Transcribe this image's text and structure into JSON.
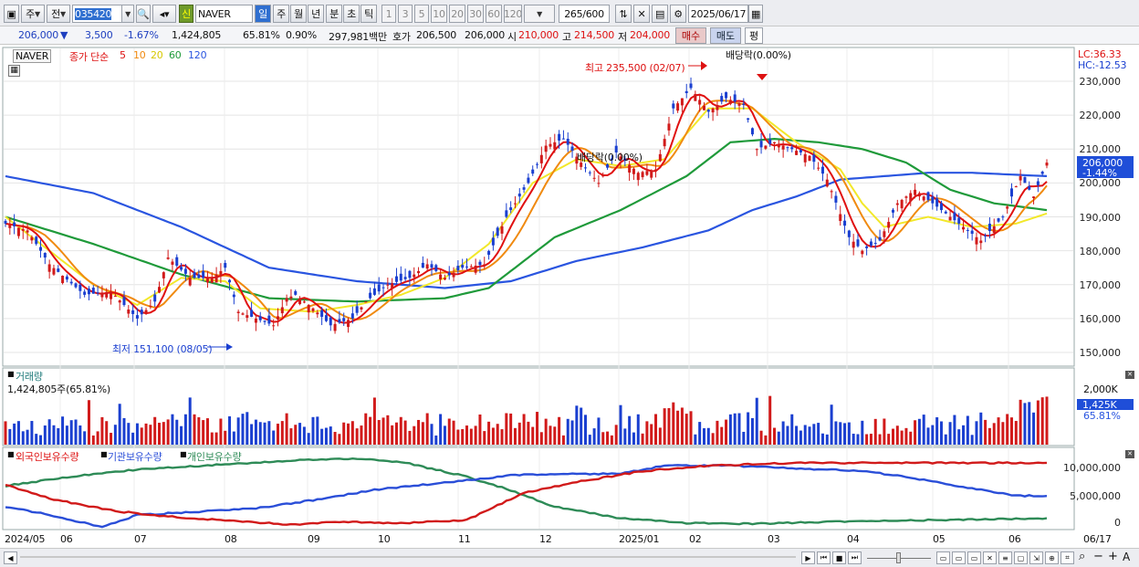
{
  "toolbar": {
    "mode_week": "주",
    "mode_prev": "전",
    "code": "035420",
    "badge_new": "신",
    "stock_name": "NAVER",
    "periods": [
      "일",
      "주",
      "월",
      "년",
      "분",
      "초",
      "틱"
    ],
    "intervals": [
      "1",
      "3",
      "5",
      "10",
      "20",
      "30",
      "60",
      "120"
    ],
    "count": "265",
    "count_max": "/600",
    "date": "2025/06/17"
  },
  "quote": {
    "price": "206,000",
    "dir": "▼",
    "change": "3,500",
    "change_pct": "-1.67%",
    "volume": "1,424,805",
    "vol_ratio": "65.81%",
    "turnover_pct": "0.90%",
    "amount": "297,981백만",
    "ask_label": "호가",
    "ask": "206,500",
    "bid": "206,000",
    "open_label": "시",
    "open": "210,000",
    "high_label": "고",
    "high": "214,500",
    "low_label": "저",
    "low": "204,000",
    "buy_btn": "매수",
    "sell_btn": "매도",
    "eval_btn": "평"
  },
  "price_panel": {
    "name": "NAVER",
    "ma_title": "종가 단순",
    "ma_periods": [
      "5",
      "10",
      "20",
      "60",
      "120"
    ],
    "high_note": "최고 235,500 (02/07)",
    "low_note": "최저 151,100 (08/05)",
    "div_top": "배당락(0.00%)",
    "div_mid": "배당락(0.00%)",
    "lc": "LC:36.33",
    "hc": "HC:-12.53",
    "price_tag": "206,000",
    "pct_tag": "-1.44%",
    "axis": [
      "230,000",
      "220,000",
      "210,000",
      "200,000",
      "190,000",
      "180,000",
      "170,000",
      "160,000",
      "150,000"
    ]
  },
  "volume_panel": {
    "title": "거래량",
    "value": "1,424,805주(65.81%)",
    "axis_top": "2,000K",
    "tag": "1,425K",
    "ratio": "65.81%"
  },
  "holdings_panel": {
    "legend": [
      "외국인보유수량",
      "기관보유수량",
      "개인보유수량"
    ],
    "axis": [
      "10,000,000",
      "5,000,000",
      "0"
    ]
  },
  "date_axis": [
    "2024/05",
    "06",
    "07",
    "08",
    "09",
    "10",
    "11",
    "12",
    "2025/01",
    "02",
    "03",
    "04",
    "05",
    "06",
    "06/17"
  ],
  "colors": {
    "up": "#d11a1a",
    "down": "#1a3fd0",
    "ma5": "#e01010",
    "ma10": "#f08a10",
    "ma20": "#f2e82a",
    "ma60": "#1f9a3a",
    "ma120": "#2a55e0",
    "foreign": "#d11a1a",
    "inst": "#2a4ed8",
    "indiv": "#2e8b57"
  },
  "chart_data": {
    "type": "candlestick",
    "ylim": [
      147000,
      238000
    ],
    "anchors": [
      [
        0,
        188000
      ],
      [
        5,
        186000
      ],
      [
        10,
        176000
      ],
      [
        18,
        167000
      ],
      [
        24,
        168000
      ],
      [
        30,
        160000
      ],
      [
        34,
        165000
      ],
      [
        37,
        178000
      ],
      [
        42,
        172000
      ],
      [
        47,
        172000
      ],
      [
        50,
        175000
      ],
      [
        53,
        162000
      ],
      [
        57,
        160000
      ],
      [
        61,
        158000
      ],
      [
        64,
        166000
      ],
      [
        66,
        167000
      ],
      [
        70,
        163000
      ],
      [
        74,
        158000
      ],
      [
        79,
        160000
      ],
      [
        82,
        165000
      ],
      [
        87,
        170000
      ],
      [
        92,
        172000
      ],
      [
        96,
        176000
      ],
      [
        100,
        172000
      ],
      [
        104,
        175000
      ],
      [
        109,
        176000
      ],
      [
        114,
        190000
      ],
      [
        119,
        200000
      ],
      [
        123,
        211000
      ],
      [
        127,
        213000
      ],
      [
        131,
        206000
      ],
      [
        135,
        200000
      ],
      [
        139,
        209000
      ],
      [
        144,
        203000
      ],
      [
        148,
        204000
      ],
      [
        152,
        222000
      ],
      [
        156,
        228000
      ],
      [
        160,
        221000
      ],
      [
        164,
        225000
      ],
      [
        168,
        223000
      ],
      [
        171,
        210000
      ],
      [
        175,
        212000
      ],
      [
        179,
        210000
      ],
      [
        183,
        208000
      ],
      [
        187,
        201000
      ],
      [
        192,
        184000
      ],
      [
        195,
        180000
      ],
      [
        199,
        183000
      ],
      [
        203,
        194000
      ],
      [
        207,
        198000
      ],
      [
        211,
        194000
      ],
      [
        215,
        190000
      ],
      [
        219,
        186000
      ],
      [
        222,
        183000
      ],
      [
        227,
        190000
      ],
      [
        231,
        202000
      ],
      [
        234,
        196000
      ],
      [
        237,
        206000
      ]
    ],
    "ma_lines": {
      "ma20": [
        [
          0,
          190000
        ],
        [
          10,
          180000
        ],
        [
          20,
          170000
        ],
        [
          30,
          164000
        ],
        [
          40,
          172000
        ],
        [
          50,
          171000
        ],
        [
          58,
          163000
        ],
        [
          70,
          162000
        ],
        [
          80,
          164000
        ],
        [
          90,
          167000
        ],
        [
          100,
          172000
        ],
        [
          110,
          182000
        ],
        [
          120,
          200000
        ],
        [
          130,
          207000
        ],
        [
          140,
          205000
        ],
        [
          150,
          207000
        ],
        [
          160,
          222000
        ],
        [
          170,
          222000
        ],
        [
          180,
          212000
        ],
        [
          190,
          204000
        ],
        [
          195,
          194000
        ],
        [
          200,
          187000
        ],
        [
          210,
          190000
        ],
        [
          220,
          187000
        ],
        [
          230,
          188000
        ],
        [
          237,
          191000
        ]
      ],
      "ma60": [
        [
          0,
          190000
        ],
        [
          20,
          182000
        ],
        [
          40,
          173000
        ],
        [
          60,
          166000
        ],
        [
          80,
          165000
        ],
        [
          100,
          166000
        ],
        [
          110,
          169000
        ],
        [
          125,
          184000
        ],
        [
          140,
          192000
        ],
        [
          155,
          202000
        ],
        [
          165,
          212000
        ],
        [
          175,
          213000
        ],
        [
          185,
          212000
        ],
        [
          195,
          210000
        ],
        [
          205,
          206000
        ],
        [
          215,
          198000
        ],
        [
          225,
          194000
        ],
        [
          237,
          192000
        ]
      ],
      "ma120": [
        [
          0,
          202000
        ],
        [
          20,
          197000
        ],
        [
          40,
          187000
        ],
        [
          60,
          175000
        ],
        [
          80,
          171000
        ],
        [
          100,
          169000
        ],
        [
          115,
          171000
        ],
        [
          130,
          177000
        ],
        [
          145,
          181000
        ],
        [
          160,
          186000
        ],
        [
          170,
          192000
        ],
        [
          180,
          196000
        ],
        [
          190,
          201000
        ],
        [
          200,
          202000
        ],
        [
          210,
          203000
        ],
        [
          220,
          203000
        ],
        [
          237,
          202000
        ]
      ]
    },
    "holdings": {
      "foreign": [
        [
          0,
          7000000
        ],
        [
          10,
          4500000
        ],
        [
          25,
          2200000
        ],
        [
          40,
          1000000
        ],
        [
          55,
          300000
        ],
        [
          65,
          -300000
        ],
        [
          75,
          300000
        ],
        [
          90,
          0
        ],
        [
          105,
          600000
        ],
        [
          118,
          5500000
        ],
        [
          130,
          7500000
        ],
        [
          145,
          9500000
        ],
        [
          160,
          10500000
        ],
        [
          180,
          11000000
        ],
        [
          200,
          11000000
        ],
        [
          237,
          11000000
        ]
      ],
      "inst": [
        [
          0,
          3000000
        ],
        [
          10,
          1500000
        ],
        [
          22,
          -700000
        ],
        [
          30,
          1500000
        ],
        [
          42,
          2000000
        ],
        [
          58,
          2800000
        ],
        [
          70,
          4200000
        ],
        [
          85,
          6200000
        ],
        [
          100,
          7400000
        ],
        [
          115,
          8700000
        ],
        [
          125,
          9000000
        ],
        [
          140,
          9000000
        ],
        [
          150,
          10500000
        ],
        [
          165,
          10500000
        ],
        [
          180,
          10000000
        ],
        [
          195,
          9500000
        ],
        [
          205,
          8500000
        ],
        [
          215,
          7000000
        ],
        [
          230,
          5000000
        ],
        [
          237,
          5000000
        ]
      ],
      "indiv": [
        [
          0,
          6800000
        ],
        [
          15,
          8500000
        ],
        [
          30,
          9800000
        ],
        [
          45,
          10500000
        ],
        [
          60,
          11200000
        ],
        [
          70,
          11600000
        ],
        [
          80,
          11800000
        ],
        [
          90,
          11200000
        ],
        [
          105,
          8500000
        ],
        [
          115,
          6000000
        ],
        [
          125,
          3000000
        ],
        [
          140,
          900000
        ],
        [
          155,
          0
        ],
        [
          170,
          -100000
        ],
        [
          185,
          200000
        ],
        [
          200,
          500000
        ],
        [
          215,
          600000
        ],
        [
          237,
          900000
        ]
      ]
    }
  }
}
